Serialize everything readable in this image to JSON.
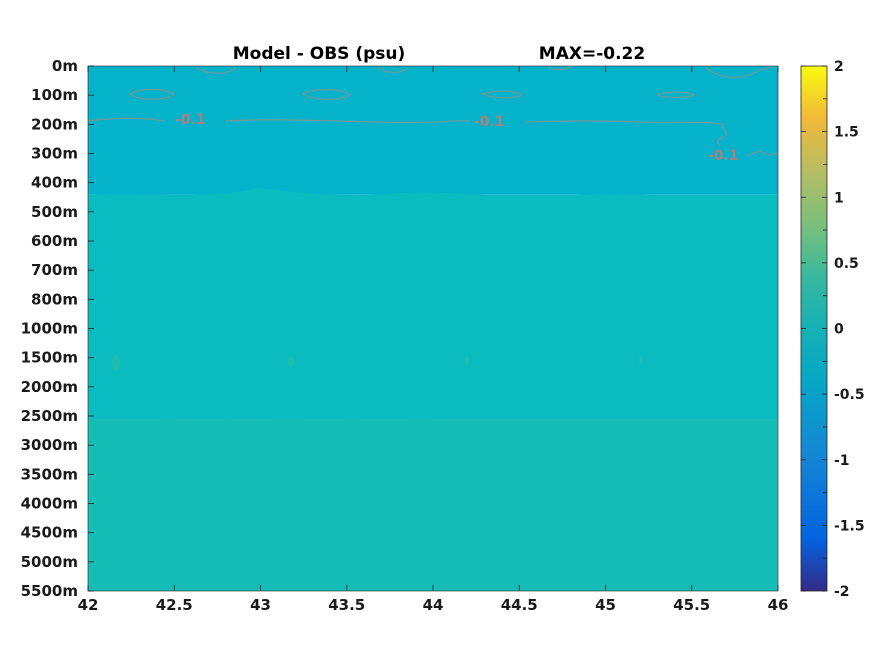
{
  "chart_data": {
    "type": "heatmap",
    "title": "Model - OBS (psu)",
    "annotation": "MAX=-0.22",
    "x_ticks": [
      "42",
      "42.5",
      "43",
      "43.5",
      "44",
      "44.5",
      "45",
      "45.5",
      "46"
    ],
    "x_range": [
      42,
      46
    ],
    "y_ticks": [
      "0m",
      "100m",
      "200m",
      "300m",
      "400m",
      "500m",
      "600m",
      "700m",
      "800m",
      "1000m",
      "1500m",
      "2000m",
      "2500m",
      "3000m",
      "3500m",
      "4000m",
      "4500m",
      "5000m",
      "5500m"
    ],
    "colorbar": {
      "ticks": [
        "2",
        "1.5",
        "1",
        "0.5",
        "0",
        "-0.5",
        "-1",
        "-1.5",
        "-2"
      ],
      "range": [
        -2,
        2
      ],
      "colormap": "parula"
    },
    "field_bands": [
      {
        "depth_from": "0m",
        "depth_to": "400m",
        "value": -0.12,
        "color": "#04b2c9"
      },
      {
        "depth_from": "400m",
        "depth_to": "2500m",
        "value": -0.05,
        "color": "#0abbbf"
      },
      {
        "depth_from": "2500m",
        "depth_to": "5500m",
        "value": 0.0,
        "color": "#15bdb6"
      }
    ],
    "contour_level": -0.1,
    "contour_labels": [
      "-0.1",
      "-0.1",
      "-0.1"
    ],
    "grid": false
  }
}
